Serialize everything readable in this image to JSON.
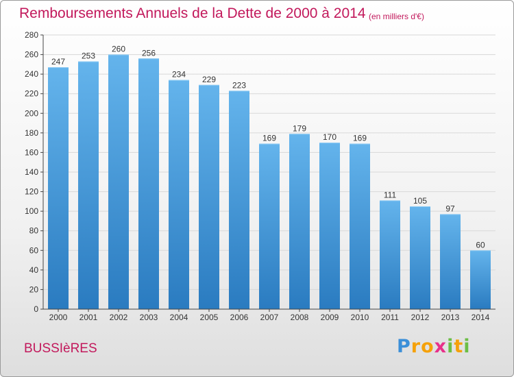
{
  "header": {
    "title": "Remboursements Annuels de la Dette de 2000 à 2014",
    "subtitle": "(en milliers d'€)"
  },
  "commune": "BUSSIèRES",
  "logo": "Proxiti",
  "colors": {
    "title": "#c2185b",
    "bar_top": "#64b4ec",
    "bar_bottom": "#2a7bc0",
    "grid": "#d8d8d8",
    "axis": "#444444"
  },
  "chart_data": {
    "type": "bar",
    "title": "Remboursements Annuels de la Dette de 2000 à 2014",
    "xlabel": "",
    "ylabel": "",
    "categories": [
      "2000",
      "2001",
      "2002",
      "2003",
      "2004",
      "2005",
      "2006",
      "2007",
      "2008",
      "2009",
      "2010",
      "2011",
      "2012",
      "2013",
      "2014"
    ],
    "values": [
      247,
      253,
      260,
      256,
      234,
      229,
      223,
      169,
      179,
      170,
      169,
      111,
      105,
      97,
      60
    ],
    "ylim": [
      0,
      280
    ],
    "yticks": [
      0,
      20,
      40,
      60,
      80,
      100,
      120,
      140,
      160,
      180,
      200,
      220,
      240,
      260,
      280
    ],
    "grid": true
  }
}
